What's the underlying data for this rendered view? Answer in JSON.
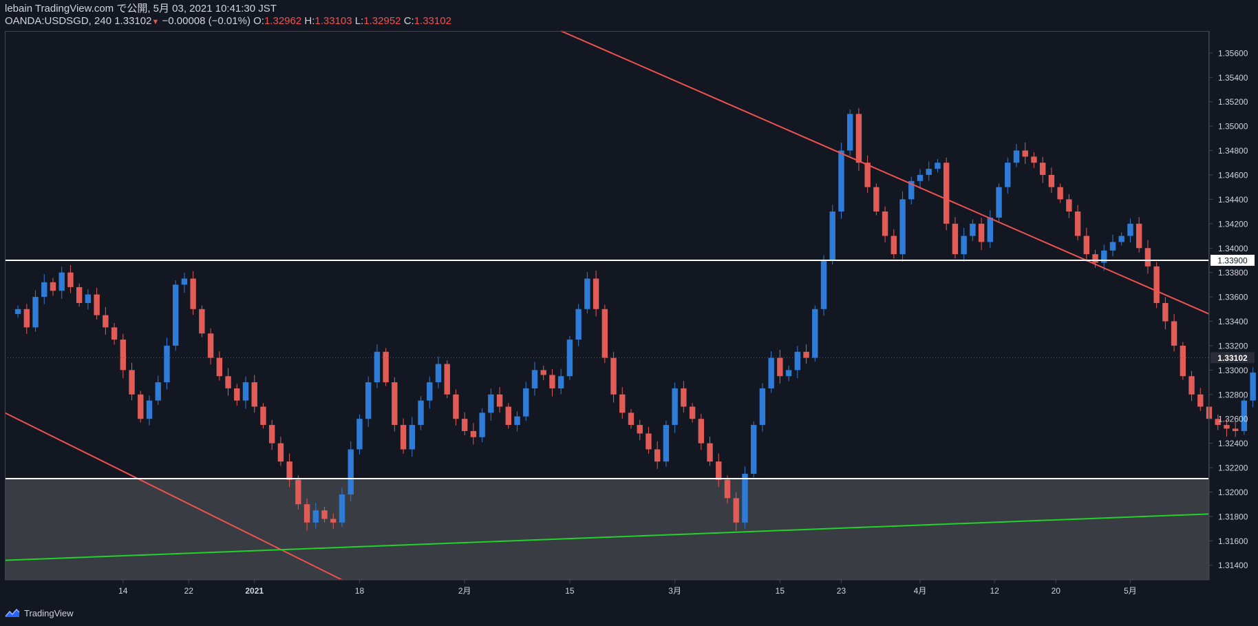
{
  "header": {
    "line1": "lebain TradingView.com で公開, 5月 03, 2021 10:41:30 JST",
    "symbol": "OANDA:USDSGD, 240",
    "last": "1.33102",
    "change_arrow": "▼",
    "change": "−0.00008 (−0.01%)",
    "o_label": "O:",
    "o_value": "1.32962",
    "h_label": "H:",
    "h_value": "1.33103",
    "l_label": "L:",
    "l_value": "1.32952",
    "c_label": "C:",
    "c_value": "1.33102"
  },
  "footer": {
    "brand": "TradingView"
  },
  "colors": {
    "background": "#131722",
    "up": "#2f7cd8",
    "down": "#e15b57",
    "trendline": "#ef5350",
    "support": "#22d42a",
    "level_line": "#ffffff",
    "zone": "#3a3c44",
    "axis_text": "#d1d4dc",
    "price_box": "#d1d4dc"
  },
  "chart_data": {
    "type": "candlestick",
    "symbol": "OANDA:USDSGD",
    "interval": "240",
    "ylim": [
      1.3128,
      1.3578
    ],
    "y_ticks": [
      "1.35600",
      "1.35400",
      "1.35200",
      "1.35000",
      "1.34800",
      "1.34600",
      "1.34400",
      "1.34200",
      "1.34000",
      "1.33800",
      "1.33600",
      "1.33400",
      "1.33200",
      "1.33000",
      "1.32800",
      "1.32600",
      "1.32400",
      "1.32200",
      "1.32000",
      "1.31800",
      "1.31600",
      "1.31400"
    ],
    "y_tick_values": [
      1.356,
      1.354,
      1.352,
      1.35,
      1.348,
      1.346,
      1.344,
      1.342,
      1.34,
      1.338,
      1.336,
      1.334,
      1.332,
      1.33,
      1.328,
      1.326,
      1.324,
      1.322,
      1.32,
      1.318,
      1.316,
      1.314
    ],
    "x_ticks": [
      "14",
      "22",
      "2021",
      "18",
      "2月",
      "15",
      "3月",
      "15",
      "23",
      "4月",
      "12",
      "20",
      "5月"
    ],
    "x_tick_positions": [
      12,
      19.5,
      27,
      39,
      51,
      63,
      75,
      87,
      94,
      103,
      111.5,
      118.5,
      127
    ],
    "x_range": [
      -1.5,
      136
    ],
    "close_series": [
      1.335,
      1.3335,
      1.336,
      1.3372,
      1.3365,
      1.338,
      1.3368,
      1.3355,
      1.3362,
      1.3345,
      1.3335,
      1.3325,
      1.33,
      1.328,
      1.326,
      1.3275,
      1.329,
      1.332,
      1.337,
      1.3375,
      1.335,
      1.333,
      1.331,
      1.3295,
      1.3285,
      1.3275,
      1.329,
      1.327,
      1.3255,
      1.324,
      1.3225,
      1.321,
      1.319,
      1.3175,
      1.3185,
      1.3178,
      1.3175,
      1.3198,
      1.3235,
      1.326,
      1.329,
      1.3315,
      1.329,
      1.3255,
      1.3235,
      1.3255,
      1.3275,
      1.329,
      1.3305,
      1.328,
      1.326,
      1.325,
      1.3245,
      1.3265,
      1.328,
      1.327,
      1.3255,
      1.3262,
      1.3285,
      1.33,
      1.3296,
      1.3285,
      1.3295,
      1.3325,
      1.335,
      1.3375,
      1.335,
      1.331,
      1.328,
      1.3265,
      1.3255,
      1.3248,
      1.3235,
      1.3225,
      1.3255,
      1.3285,
      1.327,
      1.326,
      1.324,
      1.3225,
      1.321,
      1.3195,
      1.3175,
      1.3215,
      1.3255,
      1.3285,
      1.331,
      1.3295,
      1.33,
      1.3315,
      1.331,
      1.335,
      1.339,
      1.343,
      1.348,
      1.351,
      1.347,
      1.345,
      1.343,
      1.341,
      1.3395,
      1.344,
      1.3455,
      1.346,
      1.3465,
      1.347,
      1.342,
      1.3395,
      1.341,
      1.342,
      1.3405,
      1.3425,
      1.345,
      1.347,
      1.348,
      1.3475,
      1.347,
      1.346,
      1.345,
      1.344,
      1.343,
      1.341,
      1.3395,
      1.3388,
      1.3398,
      1.3405,
      1.341,
      1.342,
      1.34,
      1.3385,
      1.3355,
      1.334,
      1.332,
      1.3295,
      1.328,
      1.327,
      1.326,
      1.3255,
      1.3252,
      1.325,
      1.3275,
      1.3298,
      1.331
    ],
    "trendlines": [
      {
        "name": "descending-resistance",
        "color": "red",
        "x": [
          62,
          136
        ],
        "y": [
          1.3578,
          1.3346
        ]
      },
      {
        "name": "lower-descending",
        "color": "red",
        "x": [
          -1.5,
          37
        ],
        "y": [
          1.3265,
          1.3128
        ]
      },
      {
        "name": "rising-support",
        "color": "green",
        "x": [
          -1.5,
          136
        ],
        "y": [
          1.3144,
          1.3182
        ]
      }
    ],
    "horizontal_levels": [
      {
        "value": 1.339,
        "label": "1.33900"
      },
      {
        "value": 1.3211,
        "label": ""
      }
    ],
    "zone": {
      "from": 1.3128,
      "to": 1.3211
    },
    "last_price": {
      "value": 1.33102,
      "label": "1.33102"
    }
  }
}
